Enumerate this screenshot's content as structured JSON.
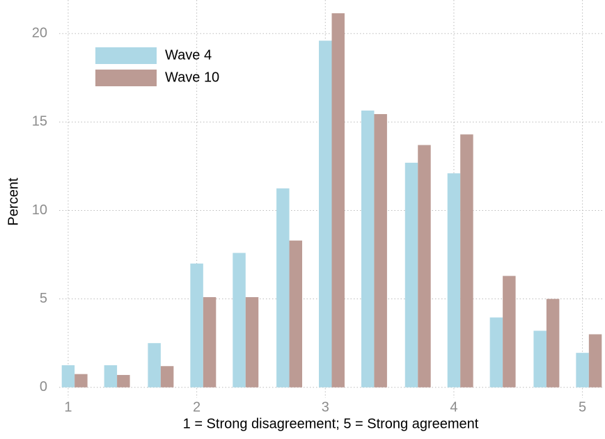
{
  "chart_data": {
    "type": "bar",
    "x_label": "1 = Strong disagreement; 5 = Strong agreement",
    "y_label": "Percent",
    "x": [
      1.05,
      1.38,
      1.72,
      2.05,
      2.38,
      2.72,
      3.05,
      3.38,
      3.72,
      4.05,
      4.38,
      4.72,
      5.05
    ],
    "series": [
      {
        "name": "Wave 4",
        "color": "#add8e6",
        "values": [
          1.25,
          1.25,
          2.5,
          7.0,
          7.6,
          11.25,
          19.6,
          15.65,
          12.7,
          12.1,
          3.95,
          3.2,
          1.95
        ]
      },
      {
        "name": "Wave 10",
        "color": "#bc9b94",
        "values": [
          0.75,
          0.7,
          1.2,
          5.1,
          5.1,
          8.3,
          21.15,
          15.45,
          13.7,
          14.3,
          6.3,
          5.0,
          3.0
        ]
      }
    ],
    "xlim": [
      0.93,
      5.17
    ],
    "xticks": [
      1,
      2,
      3,
      4,
      5
    ],
    "ylim": [
      -0.6,
      21.9
    ],
    "yticks": [
      0,
      5,
      10,
      15,
      20
    ],
    "grid": true,
    "legend": "top-left"
  }
}
